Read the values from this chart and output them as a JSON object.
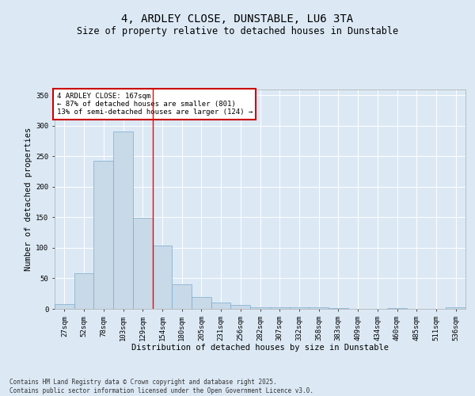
{
  "title": "4, ARDLEY CLOSE, DUNSTABLE, LU6 3TA",
  "subtitle": "Size of property relative to detached houses in Dunstable",
  "xlabel": "Distribution of detached houses by size in Dunstable",
  "ylabel": "Number of detached properties",
  "categories": [
    "27sqm",
    "52sqm",
    "78sqm",
    "103sqm",
    "129sqm",
    "154sqm",
    "180sqm",
    "205sqm",
    "231sqm",
    "256sqm",
    "282sqm",
    "307sqm",
    "332sqm",
    "358sqm",
    "383sqm",
    "409sqm",
    "434sqm",
    "460sqm",
    "485sqm",
    "511sqm",
    "536sqm"
  ],
  "values": [
    8,
    59,
    243,
    291,
    149,
    104,
    40,
    20,
    10,
    7,
    3,
    3,
    2,
    2,
    1,
    0,
    0,
    1,
    0,
    0,
    2
  ],
  "bar_color": "#c8d9e8",
  "bar_edge_color": "#7aabcc",
  "red_line_x": 4.5,
  "annotation_text": "4 ARDLEY CLOSE: 167sqm\n← 87% of detached houses are smaller (801)\n13% of semi-detached houses are larger (124) →",
  "annotation_box_color": "#ffffff",
  "annotation_box_edge": "#cc0000",
  "ylim": [
    0,
    360
  ],
  "yticks": [
    0,
    50,
    100,
    150,
    200,
    250,
    300,
    350
  ],
  "bg_color": "#dce9f5",
  "plot_bg": "#dce9f5",
  "footer": "Contains HM Land Registry data © Crown copyright and database right 2025.\nContains public sector information licensed under the Open Government Licence v3.0.",
  "title_fontsize": 10,
  "subtitle_fontsize": 8.5,
  "xlabel_fontsize": 7.5,
  "ylabel_fontsize": 7.5,
  "tick_fontsize": 6.5,
  "annot_fontsize": 6.5,
  "footer_fontsize": 5.5
}
